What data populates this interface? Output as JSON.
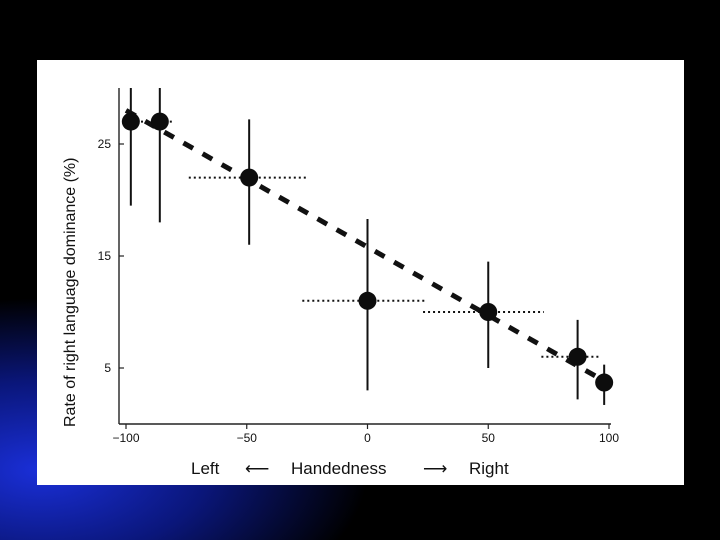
{
  "slide": {
    "background": "#000000",
    "accent": "#1a2fd8"
  },
  "chart_data": {
    "type": "scatter",
    "ylabel": "Rate of right language dominance (%)",
    "xlabel": {
      "left": "Left",
      "center": "Handedness",
      "right": "Right",
      "left_arrow": "⟵",
      "right_arrow": "⟶"
    },
    "xlim": [
      -100,
      100
    ],
    "ylim": [
      0,
      30
    ],
    "x_ticks": [
      -100,
      -50,
      0,
      50,
      100
    ],
    "x_tick_labels": [
      "−100",
      "−50",
      "0",
      "50",
      "100"
    ],
    "y_ticks": [
      5,
      15,
      25
    ],
    "y_tick_labels": [
      "5",
      "15",
      "25"
    ],
    "grid": false,
    "points": [
      {
        "x": -98,
        "y": 27,
        "y_low": 19.5,
        "y_high": 30,
        "x_low": -100,
        "x_high": -82
      },
      {
        "x": -86,
        "y": 27,
        "y_low": 18,
        "y_high": 30,
        "x_low": -86,
        "x_high": -80
      },
      {
        "x": -49,
        "y": 22,
        "y_low": 16,
        "y_high": 27.2,
        "x_low": -74,
        "x_high": -25
      },
      {
        "x": 0,
        "y": 11,
        "y_low": 3,
        "y_high": 18.3,
        "x_low": -27,
        "x_high": 24
      },
      {
        "x": 50,
        "y": 10,
        "y_low": 5,
        "y_high": 14.5,
        "x_low": 23,
        "x_high": 73
      },
      {
        "x": 87,
        "y": 6,
        "y_low": 2.2,
        "y_high": 9.3,
        "x_low": 72,
        "x_high": 96
      },
      {
        "x": 98,
        "y": 3.7,
        "y_low": 1.7,
        "y_high": 5.3,
        "x_low": 96,
        "x_high": 100
      }
    ],
    "trend_line": {
      "x": [
        -100,
        100
      ],
      "y": [
        28.0,
        3.6
      ],
      "style": "dashed"
    }
  }
}
